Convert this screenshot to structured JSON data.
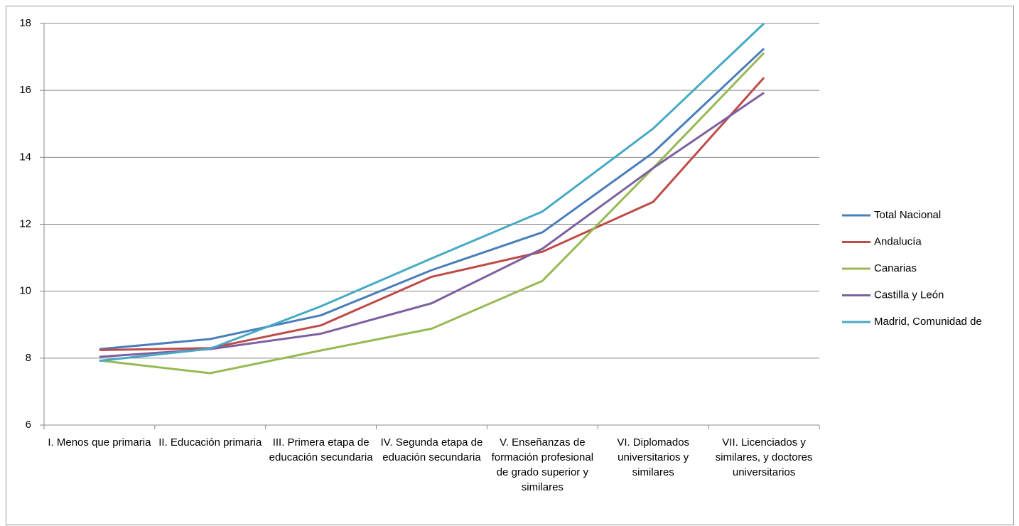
{
  "chart_data": {
    "type": "line",
    "categories": [
      "I. Menos que primaria",
      "II. Educación primaria",
      "III. Primera etapa de educación secundaria",
      "IV. Segunda etapa de eduación secundaria",
      "V. Enseñanzas de formación profesional de grado superior y similares",
      "VI. Diplomados universitarios y similares",
      "VII. Licenciados y similares, y doctores universitarios"
    ],
    "series": [
      {
        "name": "Total Nacional",
        "color": "#4a7ebb",
        "values": [
          8.27,
          8.57,
          9.28,
          10.63,
          11.76,
          14.14,
          17.25
        ]
      },
      {
        "name": "Andalucía",
        "color": "#be4b48",
        "values": [
          8.24,
          8.3,
          8.98,
          10.43,
          11.18,
          12.67,
          16.38
        ]
      },
      {
        "name": "Canarias",
        "color": "#98b954",
        "values": [
          7.93,
          7.55,
          8.23,
          8.88,
          10.31,
          13.68,
          17.12
        ]
      },
      {
        "name": "Castilla y León",
        "color": "#7d60a0",
        "values": [
          8.04,
          8.27,
          8.73,
          9.64,
          11.27,
          13.68,
          15.93
        ]
      },
      {
        "name": "Madrid, Comunidad de",
        "color": "#46aac5",
        "values": [
          7.92,
          8.28,
          9.55,
          10.98,
          12.38,
          14.86,
          18.0
        ]
      }
    ],
    "ylim": [
      6,
      18
    ],
    "yticks": [
      6,
      8,
      10,
      12,
      14,
      16,
      18
    ],
    "grid": true,
    "legend": "right"
  }
}
